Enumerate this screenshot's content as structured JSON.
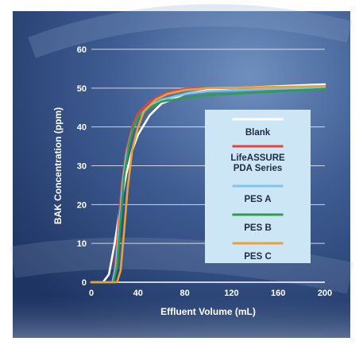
{
  "chart_data": {
    "type": "line",
    "xlabel": "Effluent Volume (mL)",
    "ylabel": "BAK Concentration (ppm)",
    "xlim": [
      0,
      200
    ],
    "ylim": [
      0,
      60
    ],
    "x_ticks": [
      "0",
      "40",
      "80",
      "120",
      "160",
      "200"
    ],
    "y_ticks": [
      "0",
      "10",
      "20",
      "30",
      "40",
      "50",
      "60"
    ],
    "grid": "horizontal",
    "legend_position": "right",
    "series": [
      {
        "name": "Blank",
        "color": "#ffffff",
        "points": [
          [
            0,
            0
          ],
          [
            10,
            0
          ],
          [
            15,
            2
          ],
          [
            20,
            10
          ],
          [
            25,
            20
          ],
          [
            30,
            28
          ],
          [
            35,
            34
          ],
          [
            40,
            38
          ],
          [
            50,
            43
          ],
          [
            60,
            46
          ],
          [
            80,
            48.5
          ],
          [
            100,
            49.5
          ],
          [
            120,
            50
          ],
          [
            160,
            50.5
          ],
          [
            200,
            51
          ]
        ]
      },
      {
        "name": "LifeASSURE PDA Series",
        "color": "#e0443f",
        "points": [
          [
            0,
            0
          ],
          [
            18,
            0
          ],
          [
            20,
            3
          ],
          [
            23,
            14
          ],
          [
            26,
            25
          ],
          [
            30,
            34
          ],
          [
            35,
            40
          ],
          [
            40,
            43.5
          ],
          [
            50,
            46.5
          ],
          [
            60,
            48.2
          ],
          [
            70,
            49.3
          ],
          [
            80,
            49.8
          ],
          [
            100,
            50
          ],
          [
            150,
            50.2
          ],
          [
            200,
            50.5
          ]
        ]
      },
      {
        "name": "PES A",
        "color": "#7fc6ea",
        "points": [
          [
            0,
            0
          ],
          [
            18,
            0
          ],
          [
            21,
            4
          ],
          [
            24,
            15
          ],
          [
            27,
            26
          ],
          [
            30,
            33
          ],
          [
            35,
            39
          ],
          [
            40,
            42.5
          ],
          [
            50,
            45.5
          ],
          [
            60,
            47
          ],
          [
            80,
            48.5
          ],
          [
            100,
            49.2
          ],
          [
            150,
            49.8
          ],
          [
            200,
            50.2
          ]
        ]
      },
      {
        "name": "PES B",
        "color": "#2f9e4a",
        "points": [
          [
            0,
            0
          ],
          [
            19,
            0
          ],
          [
            22,
            4
          ],
          [
            25,
            16
          ],
          [
            28,
            27
          ],
          [
            32,
            35
          ],
          [
            36,
            40
          ],
          [
            40,
            42.5
          ],
          [
            50,
            45
          ],
          [
            60,
            46.5
          ],
          [
            80,
            47.5
          ],
          [
            100,
            48.2
          ],
          [
            150,
            49
          ],
          [
            200,
            49.8
          ]
        ]
      },
      {
        "name": "PES C",
        "color": "#e8a23a",
        "points": [
          [
            0,
            0
          ],
          [
            22,
            0
          ],
          [
            25,
            3
          ],
          [
            28,
            13
          ],
          [
            31,
            24
          ],
          [
            35,
            34
          ],
          [
            40,
            40
          ],
          [
            45,
            44
          ],
          [
            55,
            47
          ],
          [
            65,
            48.5
          ],
          [
            80,
            49.5
          ],
          [
            100,
            50
          ],
          [
            150,
            50.3
          ],
          [
            200,
            50.5
          ]
        ]
      }
    ],
    "legend": {
      "entries": [
        "Blank",
        "LifeASSURE PDA Series",
        "PES A",
        "PES B",
        "PES C"
      ]
    }
  }
}
